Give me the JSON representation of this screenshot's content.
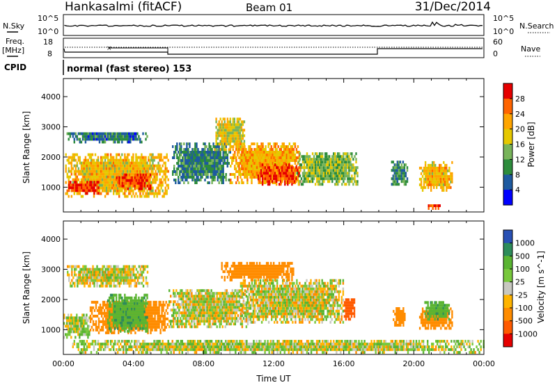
{
  "header": {
    "radar": "Hankasalmi (fitACF)",
    "beam": "Beam 01",
    "date": "31/Dec/2014"
  },
  "noise_panel": {
    "left_label": "N.Sky",
    "right_label": "N.Search",
    "left_ticks": [
      "10^5",
      "10^0"
    ],
    "right_ticks": [
      "10^5",
      "10^0"
    ]
  },
  "freq_panel": {
    "left_label": "Freq.",
    "left_unit": "[MHz]",
    "right_label": "Nave",
    "left_ticks": [
      "18",
      "8"
    ],
    "right_ticks": [
      "60",
      "0"
    ]
  },
  "cpid": {
    "label": "CPID",
    "text": "normal (fast stereo) 153"
  },
  "x_axis": {
    "label": "Time UT",
    "ticks": [
      "00:00",
      "04:00",
      "08:00",
      "12:00",
      "16:00",
      "20:00",
      "00:00"
    ]
  },
  "chart_data": [
    {
      "type": "heatmap",
      "title": "Power",
      "xlabel": "Time UT",
      "ylabel": "Slant Range [km]",
      "xlim": [
        0,
        24
      ],
      "ylim": [
        180,
        4600
      ],
      "y_ticks": [
        1000,
        2000,
        3000,
        4000
      ],
      "colorbar": {
        "label": "Power [dB]",
        "ticks": [
          "28",
          "24",
          "20",
          "16",
          "12",
          "8",
          "4"
        ],
        "range": [
          0,
          32
        ],
        "colors": [
          "#0000ff",
          "#1e5aa0",
          "#2d8c3c",
          "#78b45a",
          "#e6c800",
          "#ffa500",
          "#ff6400",
          "#e60000"
        ]
      },
      "regions": [
        {
          "t0": 0.1,
          "t1": 6.0,
          "r0": 650,
          "r1": 2100,
          "level": 20
        },
        {
          "t0": 0.2,
          "t1": 2.0,
          "r0": 750,
          "r1": 1150,
          "level": 29
        },
        {
          "t0": 3.0,
          "t1": 5.0,
          "r0": 900,
          "r1": 1400,
          "level": 27
        },
        {
          "t0": 0.1,
          "t1": 4.8,
          "r0": 2450,
          "r1": 2800,
          "level": 8
        },
        {
          "t0": 6.2,
          "t1": 9.5,
          "r0": 1100,
          "r1": 2400,
          "level": 9
        },
        {
          "t0": 8.6,
          "t1": 10.3,
          "r0": 2200,
          "r1": 3300,
          "level": 18
        },
        {
          "t0": 9.5,
          "t1": 13.5,
          "r0": 1100,
          "r1": 2400,
          "level": 21
        },
        {
          "t0": 11.0,
          "t1": 13.5,
          "r0": 1050,
          "r1": 1700,
          "level": 28
        },
        {
          "t0": 13.3,
          "t1": 16.8,
          "r0": 1050,
          "r1": 2100,
          "level": 14
        },
        {
          "t0": 18.7,
          "t1": 19.6,
          "r0": 1050,
          "r1": 1800,
          "level": 10
        },
        {
          "t0": 20.3,
          "t1": 22.2,
          "r0": 850,
          "r1": 1800,
          "level": 20
        },
        {
          "t0": 20.8,
          "t1": 21.6,
          "r0": 250,
          "r1": 400,
          "level": 28
        }
      ]
    },
    {
      "type": "heatmap",
      "title": "Velocity",
      "xlabel": "Time UT",
      "ylabel": "Slant Range [km]",
      "xlim": [
        0,
        24
      ],
      "ylim": [
        180,
        4600
      ],
      "y_ticks": [
        1000,
        2000,
        3000,
        4000
      ],
      "colorbar": {
        "label": "Velocity [m s^-1]",
        "ticks": [
          "1000",
          "500",
          "100",
          "25",
          "-25",
          "-100",
          "-500",
          "-1000"
        ],
        "colors": [
          "#2850b4",
          "#2d8c5a",
          "#5ab432",
          "#78c83c",
          "#c8c8c0",
          "#ffb400",
          "#ff8c00",
          "#ff5a00",
          "#e60000"
        ]
      },
      "regions": [
        {
          "t0": 0.0,
          "t1": 1.5,
          "r0": 700,
          "r1": 1500,
          "velocity": 60
        },
        {
          "t0": 1.5,
          "t1": 6.0,
          "r0": 850,
          "r1": 1900,
          "velocity": -300
        },
        {
          "t0": 2.5,
          "t1": 4.8,
          "r0": 900,
          "r1": 2100,
          "velocity": 400
        },
        {
          "t0": 0.2,
          "t1": 4.8,
          "r0": 2400,
          "r1": 3100,
          "velocity": 0
        },
        {
          "t0": 6.0,
          "t1": 10.5,
          "r0": 1050,
          "r1": 2300,
          "velocity": 0
        },
        {
          "t0": 10.0,
          "t1": 16.0,
          "r0": 1200,
          "r1": 2600,
          "velocity": 0
        },
        {
          "t0": 16.0,
          "t1": 16.6,
          "r0": 1300,
          "r1": 2000,
          "velocity": -800
        },
        {
          "t0": 9.0,
          "t1": 13.2,
          "r0": 2600,
          "r1": 3200,
          "velocity": -250
        },
        {
          "t0": 18.8,
          "t1": 19.5,
          "r0": 1100,
          "r1": 1700,
          "velocity": -300
        },
        {
          "t0": 20.3,
          "t1": 22.2,
          "r0": 1000,
          "r1": 1700,
          "velocity": -250
        },
        {
          "t0": 20.6,
          "t1": 22.0,
          "r0": 1300,
          "r1": 1900,
          "velocity": 400
        },
        {
          "t0": 0.5,
          "t1": 24.0,
          "r0": 200,
          "r1": 600,
          "velocity": 30
        }
      ]
    }
  ]
}
